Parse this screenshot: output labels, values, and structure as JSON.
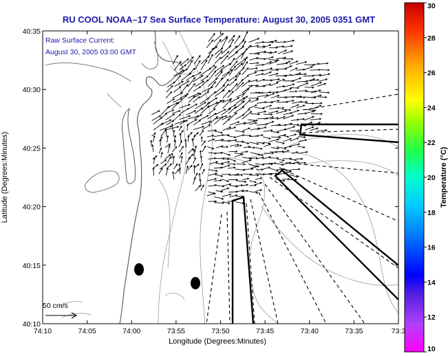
{
  "title": "RU COOL  NOAA–17  Sea Surface Temperature:  August 30, 2005 0351 GMT",
  "legend": {
    "line1": "Raw Surface Current:",
    "line2": "August 30, 2005 03:00 GMT"
  },
  "scale_label": "50 cm/s",
  "x_axis": {
    "label": "Longitude (Degrees:Minutes)",
    "ticks": [
      "74:10",
      "74:05",
      "74:00",
      "73:55",
      "73:50",
      "73:45",
      "73:40",
      "73:35",
      "73:3"
    ]
  },
  "y_axis": {
    "label": "Latitude (Degrees:Minutes)",
    "ticks": [
      "40:10",
      "40:15",
      "40:20",
      "40:25",
      "40:30",
      "40:35"
    ]
  },
  "colorbar": {
    "label": "Temperature (°C)",
    "ticks": [
      "10",
      "12",
      "14",
      "16",
      "18",
      "20",
      "22",
      "24",
      "26",
      "28",
      "30"
    ],
    "colors": [
      "#ff00ff",
      "#8a2be2",
      "#0000ff",
      "#0099ff",
      "#00ffff",
      "#00ff88",
      "#66ff00",
      "#ffff00",
      "#ffaa00",
      "#ff3300",
      "#cc0000"
    ]
  },
  "map": {
    "land_fill": "#ffffff",
    "contour_color": "#888888",
    "vector_color": "#000000"
  }
}
